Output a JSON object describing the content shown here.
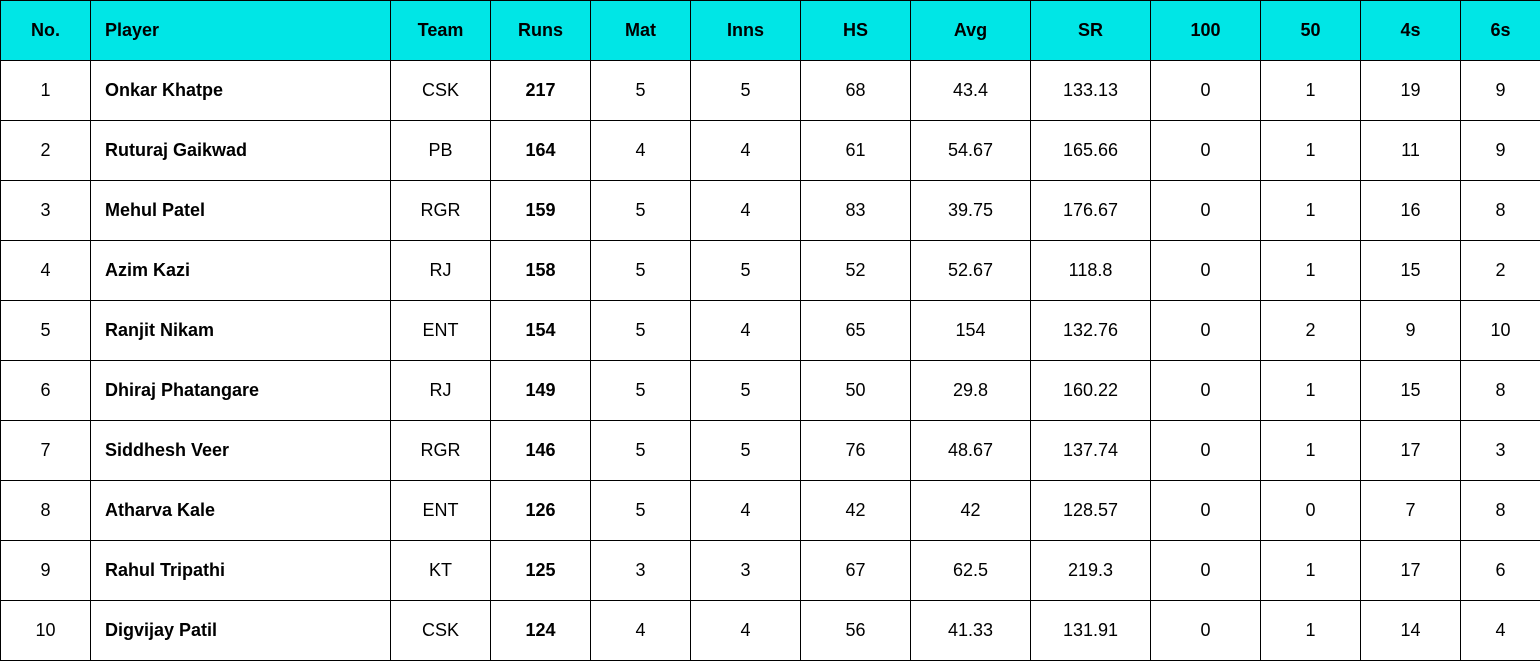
{
  "table": {
    "header_bg": "#00e6e6",
    "border_color": "#000000",
    "columns": [
      {
        "key": "no",
        "label": "No.",
        "class": "col-no"
      },
      {
        "key": "player",
        "label": "Player",
        "class": "col-player player-col"
      },
      {
        "key": "team",
        "label": "Team",
        "class": "col-team"
      },
      {
        "key": "runs",
        "label": "Runs",
        "class": "col-runs"
      },
      {
        "key": "mat",
        "label": "Mat",
        "class": "col-mat"
      },
      {
        "key": "inns",
        "label": "Inns",
        "class": "col-inns"
      },
      {
        "key": "hs",
        "label": "HS",
        "class": "col-hs"
      },
      {
        "key": "avg",
        "label": "Avg",
        "class": "col-avg"
      },
      {
        "key": "sr",
        "label": "SR",
        "class": "col-sr"
      },
      {
        "key": "c100",
        "label": "100",
        "class": "col-100"
      },
      {
        "key": "c50",
        "label": "50",
        "class": "col-50"
      },
      {
        "key": "c4s",
        "label": "4s",
        "class": "col-4s"
      },
      {
        "key": "c6s",
        "label": "6s",
        "class": "col-6s"
      }
    ],
    "rows": [
      {
        "no": "1",
        "player": "Onkar Khatpe",
        "team": "CSK",
        "runs": "217",
        "mat": "5",
        "inns": "5",
        "hs": "68",
        "avg": "43.4",
        "sr": "133.13",
        "c100": "0",
        "c50": "1",
        "c4s": "19",
        "c6s": "9"
      },
      {
        "no": "2",
        "player": "Ruturaj Gaikwad",
        "team": "PB",
        "runs": "164",
        "mat": "4",
        "inns": "4",
        "hs": "61",
        "avg": "54.67",
        "sr": "165.66",
        "c100": "0",
        "c50": "1",
        "c4s": "11",
        "c6s": "9"
      },
      {
        "no": "3",
        "player": "Mehul Patel",
        "team": "RGR",
        "runs": "159",
        "mat": "5",
        "inns": "4",
        "hs": "83",
        "avg": "39.75",
        "sr": "176.67",
        "c100": "0",
        "c50": "1",
        "c4s": "16",
        "c6s": "8"
      },
      {
        "no": "4",
        "player": "Azim Kazi",
        "team": "RJ",
        "runs": "158",
        "mat": "5",
        "inns": "5",
        "hs": "52",
        "avg": "52.67",
        "sr": "118.8",
        "c100": "0",
        "c50": "1",
        "c4s": "15",
        "c6s": "2"
      },
      {
        "no": "5",
        "player": "Ranjit Nikam",
        "team": "ENT",
        "runs": "154",
        "mat": "5",
        "inns": "4",
        "hs": "65",
        "avg": "154",
        "sr": "132.76",
        "c100": "0",
        "c50": "2",
        "c4s": "9",
        "c6s": "10"
      },
      {
        "no": "6",
        "player": "Dhiraj Phatangare",
        "team": "RJ",
        "runs": "149",
        "mat": "5",
        "inns": "5",
        "hs": "50",
        "avg": "29.8",
        "sr": "160.22",
        "c100": "0",
        "c50": "1",
        "c4s": "15",
        "c6s": "8"
      },
      {
        "no": "7",
        "player": "Siddhesh Veer",
        "team": "RGR",
        "runs": "146",
        "mat": "5",
        "inns": "5",
        "hs": "76",
        "avg": "48.67",
        "sr": "137.74",
        "c100": "0",
        "c50": "1",
        "c4s": "17",
        "c6s": "3"
      },
      {
        "no": "8",
        "player": "Atharva Kale",
        "team": "ENT",
        "runs": "126",
        "mat": "5",
        "inns": "4",
        "hs": "42",
        "avg": "42",
        "sr": "128.57",
        "c100": "0",
        "c50": "0",
        "c4s": "7",
        "c6s": "8"
      },
      {
        "no": "9",
        "player": "Rahul Tripathi",
        "team": "KT",
        "runs": "125",
        "mat": "3",
        "inns": "3",
        "hs": "67",
        "avg": "62.5",
        "sr": "219.3",
        "c100": "0",
        "c50": "1",
        "c4s": "17",
        "c6s": "6"
      },
      {
        "no": "10",
        "player": "Digvijay Patil",
        "team": "CSK",
        "runs": "124",
        "mat": "4",
        "inns": "4",
        "hs": "56",
        "avg": "41.33",
        "sr": "131.91",
        "c100": "0",
        "c50": "1",
        "c4s": "14",
        "c6s": "4"
      }
    ]
  }
}
